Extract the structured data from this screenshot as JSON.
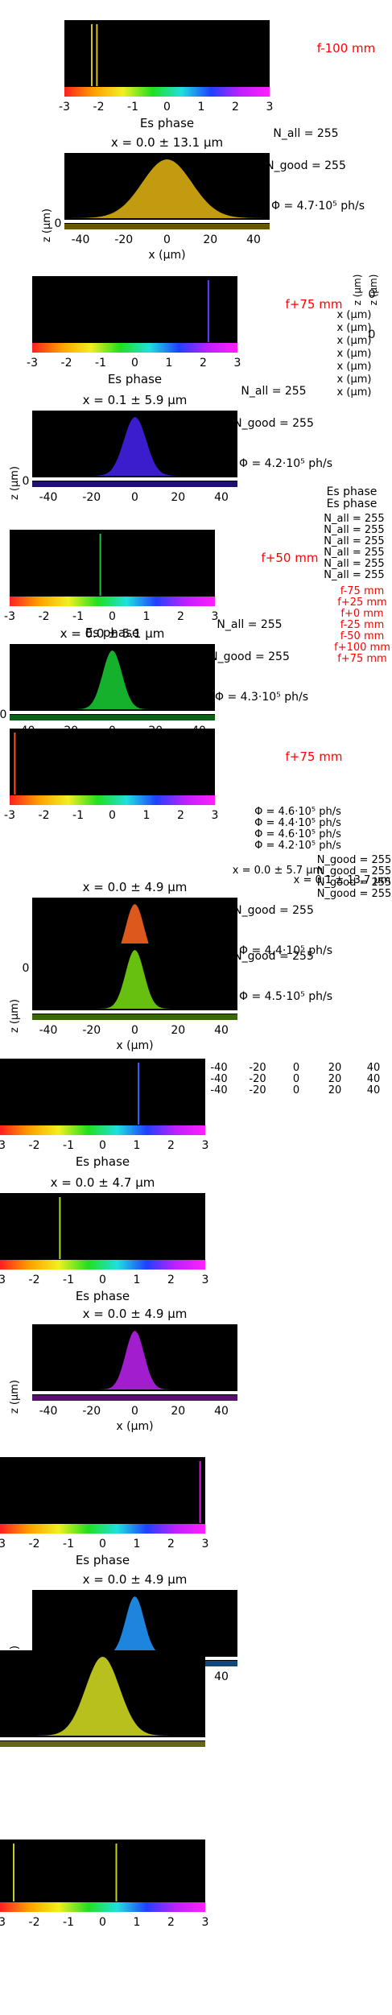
{
  "colors": {
    "background": "#ffffff",
    "panel": "#000000",
    "focus_label": "#ff0000",
    "axis_text": "#000000"
  },
  "chart_data": [
    {
      "type": "area",
      "panel_index": 1,
      "focus_label": "f-100 mm",
      "phase_xlabel": "Es phase",
      "phase_ticks": [
        "-3",
        "-2",
        "-1",
        "0",
        "1",
        "2",
        "3"
      ],
      "phase_x": [
        -2.2,
        -2.05
      ],
      "phase_color": "#d6c020",
      "profile_title": "x = 0.0 ± 13.1 µm",
      "xlabel": "x (µm)",
      "ylabel": "z (µm)",
      "x_ticks": [
        "-40",
        "-20",
        "0",
        "20",
        "40"
      ],
      "xlim": [
        -50,
        50
      ],
      "ylim_ticks": [
        "0"
      ],
      "profile_center": 0,
      "profile_width": 13.1,
      "profile_color": "#d4a810",
      "n_all": "N_all = 255",
      "n_good": "N_good = 255",
      "flux": "Φ = 4.7·10⁵ ph/s"
    },
    {
      "type": "area",
      "panel_index": 2,
      "focus_label": "f+75 mm",
      "phase_xlabel": "Es phase",
      "phase_ticks": [
        "-3",
        "-2",
        "-1",
        "0",
        "1",
        "2",
        "3"
      ],
      "phase_x": [
        2.15
      ],
      "phase_color": "#6040ff",
      "profile_title": "x = 0.1 ± 5.9 µm",
      "xlabel": "",
      "ylabel": "z (µm)",
      "x_ticks": [
        "-40",
        "-20",
        "0",
        "20",
        "40"
      ],
      "xlim": [
        -50,
        50
      ],
      "ylim_ticks": [
        "0"
      ],
      "profile_center": 0.1,
      "profile_width": 5.9,
      "profile_color": "#4020e0",
      "n_all": "N_all = 255",
      "n_good": "N_good = 255",
      "flux": "Φ = 4.2·10⁵ ph/s"
    },
    {
      "type": "area",
      "panel_index": 3,
      "focus_label": "f+50 mm",
      "phase_xlabel": "Es phase",
      "phase_ticks": [
        "-3",
        "-2",
        "-1",
        "0",
        "1",
        "2",
        "3"
      ],
      "phase_x": [
        -0.35
      ],
      "phase_color": "#20c040",
      "profile_title": "x = 0.0 ± 5.1 µm",
      "xlabel": "",
      "ylabel": "",
      "x_ticks": [
        "-40",
        "-20",
        "0",
        "20",
        "40"
      ],
      "xlim": [
        -50,
        50
      ],
      "ylim_ticks": [
        "0"
      ],
      "profile_center": 0,
      "profile_width": 5.1,
      "profile_color": "#18c030",
      "n_all": "N_all = 255",
      "n_good": "N_good = 255",
      "flux": "Φ = 4.3·10⁵ ph/s"
    },
    {
      "type": "area",
      "panel_index": 4,
      "focus_label": "f+75 mm",
      "phase_xlabel": "",
      "phase_ticks": [
        "-3",
        "-2",
        "-1",
        "0",
        "1",
        "2",
        "3"
      ],
      "phase_x": [
        -2.85
      ],
      "phase_color": "#ff5020",
      "profile_title": "x = 0.0 ± 4.9 µm",
      "xlabel": "",
      "ylabel": "",
      "x_ticks": [
        "-40",
        "-20",
        "0",
        "20",
        "40"
      ],
      "xlim": [
        -50,
        50
      ],
      "ylim_ticks": [
        "0"
      ],
      "profile_center": 0,
      "profile_width": 4.9,
      "profile_color": "#f06020",
      "n_all": "",
      "n_good": "N_good = 255",
      "flux": "Φ = 4.4·10⁵ ph/s"
    },
    {
      "type": "area",
      "panel_index": 5,
      "focus_label": "",
      "phase_xlabel": "",
      "phase_ticks": [],
      "phase_x": [],
      "phase_color": "#80e020",
      "profile_title": "",
      "xlabel": "x (µm)",
      "ylabel": "z (µm)",
      "x_ticks": [
        "-40",
        "-20",
        "0",
        "20",
        "40"
      ],
      "xlim": [
        -50,
        50
      ],
      "ylim_ticks": [],
      "profile_center": 0,
      "profile_width": 4.9,
      "profile_color": "#70d010",
      "n_all": "",
      "n_good": "N_good = 255",
      "flux": "Φ = 4.5·10⁵ ph/s"
    },
    {
      "type": "area",
      "panel_index": 6,
      "focus_label": "",
      "phase_xlabel": "Es phase",
      "phase_ticks": [
        "-3",
        "-2",
        "-1",
        "0",
        "1",
        "2",
        "3"
      ],
      "phase_x": [
        1.05
      ],
      "phase_color": "#4060ff",
      "profile_title": "x = 0.0 ± 4.7 µm",
      "xlabel": "",
      "ylabel": "",
      "x_ticks": [],
      "xlim": [
        -50,
        50
      ],
      "ylim_ticks": [],
      "profile_center": 0,
      "profile_width": 4.7,
      "profile_color": "#3050f0",
      "n_all": "",
      "n_good": "",
      "flux": ""
    },
    {
      "type": "area",
      "panel_index": 7,
      "focus_label": "",
      "phase_xlabel": "Es phase",
      "phase_ticks": [
        "-3",
        "-2",
        "-1",
        "0",
        "1",
        "2",
        "3"
      ],
      "phase_x": [
        -1.25
      ],
      "phase_color": "#a0e020",
      "profile_title": "x = 0.0 ± 4.9 µm",
      "xlabel": "x (µm)",
      "ylabel": "z (µm)",
      "x_ticks": [
        "-40",
        "-20",
        "0",
        "20",
        "40"
      ],
      "xlim": [
        -50,
        50
      ],
      "ylim_ticks": [],
      "profile_center": 0,
      "profile_width": 4.9,
      "profile_color": "#b020e0",
      "n_all": "",
      "n_good": "",
      "flux": ""
    },
    {
      "type": "area",
      "panel_index": 8,
      "focus_label": "",
      "phase_xlabel": "Es phase",
      "phase_ticks": [
        "-3",
        "-2",
        "-1",
        "0",
        "1",
        "2",
        "3"
      ],
      "phase_x": [
        2.85
      ],
      "phase_color": "#e020e0",
      "profile_title": "x = 0.0 ± 4.9 µm",
      "xlabel": "",
      "ylabel": "z (µm)",
      "x_ticks": [
        "-40",
        "-20",
        "0",
        "20",
        "40"
      ],
      "xlim": [
        -50,
        50
      ],
      "ylim_ticks": [],
      "profile_center": 0,
      "profile_width": 4.9,
      "profile_color": "#2090f0",
      "n_all": "",
      "n_good": "",
      "flux": ""
    },
    {
      "type": "area",
      "panel_index": 9,
      "focus_label": "",
      "phase_xlabel": "",
      "phase_ticks": [
        "-3",
        "-2",
        "-1",
        "0",
        "1",
        "2",
        "3"
      ],
      "phase_x": [
        -2.6,
        0.4
      ],
      "phase_color": "#c0d020",
      "profile_title": "",
      "xlabel": "",
      "ylabel": "",
      "x_ticks": [],
      "xlim": [
        -50,
        50
      ],
      "ylim_ticks": [],
      "profile_center": 0,
      "profile_width": 9.0,
      "profile_color": "#c8d020",
      "profile2_color": "#20d0b0",
      "n_all": "",
      "n_good": "",
      "flux": ""
    }
  ],
  "stray_labels": {
    "right_column_x": [
      "x (µm)",
      "x (µm)",
      "x (µm)",
      "x (µm)",
      "x (µm)",
      "x (µm)",
      "x (µm)"
    ],
    "right_column_zero": [
      "0",
      "0"
    ],
    "right_column_z": [
      "z (µm)",
      "z (µm)"
    ],
    "es_phase_stack": [
      "Es phase",
      "Es phase"
    ],
    "n_all_stack": [
      "N_all = 255",
      "N_all = 255",
      "N_all = 255",
      "N_all = 255",
      "N_all = 255",
      "N_all = 255"
    ],
    "focus_stack": [
      "f-75 mm",
      "f+25 mm",
      "f+0 mm",
      "f-25 mm",
      "f-50 mm",
      "f+100 mm",
      "f+75 mm"
    ],
    "flux_stack": [
      "Φ = 4.6·10⁵ ph/s",
      "Φ = 4.4·10⁵ ph/s",
      "Φ = 4.6·10⁵ ph/s",
      "Φ = 4.2·10⁵ ph/s"
    ],
    "n_good_stack": [
      "N_good = 255",
      "N_good = 255",
      "N_good = 255",
      "N_good = 255"
    ],
    "title_stack": [
      "x = 0.0 ± 5.7 µm",
      "x = 0.1 ± 13.7 µm"
    ],
    "tick_rows": [
      "-40",
      "-20",
      "0",
      "20",
      "40"
    ]
  }
}
